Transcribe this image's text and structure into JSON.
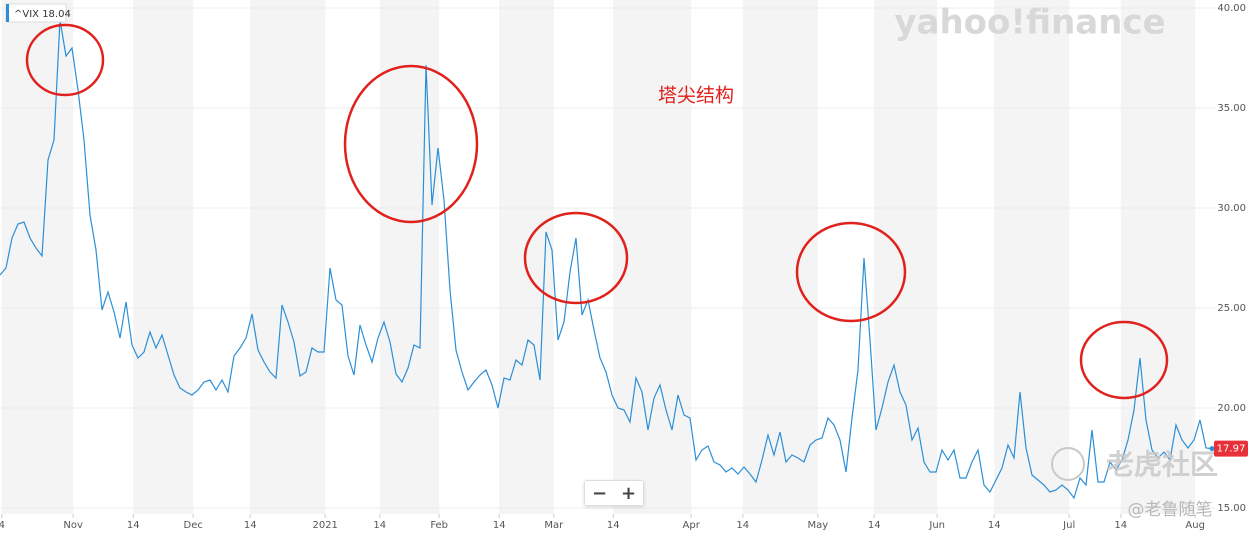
{
  "chart_data": {
    "type": "line",
    "ticker_label": "^VIX 18.04",
    "annotation": "塔尖结构",
    "watermarks": [
      "yahoo!finance",
      "老虎社区",
      "@老鲁随笔"
    ],
    "series": [
      {
        "name": "^VIX",
        "color": "#2b8fd8",
        "values": [
          26.65,
          27.0,
          28.5,
          29.2,
          29.3,
          28.5,
          28.0,
          27.6,
          32.4,
          33.4,
          39.4,
          37.6,
          38.0,
          35.9,
          33.4,
          29.65,
          27.9,
          24.9,
          25.8,
          24.8,
          23.5,
          25.3,
          23.15,
          22.5,
          22.8,
          23.8,
          23.0,
          23.65,
          22.65,
          21.65,
          21.0,
          20.8,
          20.65,
          20.9,
          21.3,
          21.4,
          20.9,
          21.4,
          20.8,
          22.6,
          23.0,
          23.5,
          24.7,
          22.9,
          22.3,
          21.8,
          21.5,
          25.15,
          24.3,
          23.3,
          21.6,
          21.8,
          23.0,
          22.8,
          22.8,
          27.0,
          25.4,
          25.15,
          22.6,
          21.65,
          24.15,
          23.15,
          22.3,
          23.5,
          24.3,
          23.3,
          21.7,
          21.3,
          22.0,
          23.15,
          23.0,
          37.15,
          30.15,
          33.0,
          30.4,
          25.9,
          22.9,
          21.8,
          20.9,
          21.3,
          21.65,
          21.9,
          21.15,
          20.0,
          21.5,
          21.4,
          22.4,
          22.15,
          23.4,
          23.15,
          21.4,
          28.8,
          27.9,
          23.4,
          24.3,
          26.8,
          28.5,
          24.65,
          25.4,
          23.9,
          22.5,
          21.8,
          20.65,
          20.0,
          19.9,
          19.3,
          21.5,
          20.8,
          18.9,
          20.5,
          21.15,
          19.9,
          18.9,
          20.65,
          19.65,
          19.5,
          17.4,
          17.9,
          18.1,
          17.3,
          17.15,
          16.8,
          17.0,
          16.7,
          17.05,
          16.7,
          16.3,
          17.4,
          18.65,
          17.65,
          18.8,
          17.3,
          17.65,
          17.5,
          17.3,
          18.15,
          18.4,
          18.5,
          19.5,
          19.15,
          18.4,
          16.8,
          19.5,
          21.9,
          27.5,
          23.4,
          18.9,
          20.0,
          21.3,
          22.15,
          20.8,
          20.15,
          18.4,
          19.0,
          17.3,
          16.8,
          16.8,
          17.9,
          17.4,
          17.9,
          16.5,
          16.5,
          17.3,
          17.9,
          16.15,
          15.8,
          16.4,
          17.0,
          18.15,
          17.5,
          20.8,
          18.0,
          16.65,
          16.4,
          16.15,
          15.8,
          15.9,
          16.15,
          15.9,
          15.5,
          16.5,
          16.15,
          18.9,
          16.3,
          16.3,
          17.3,
          16.9,
          17.4,
          18.4,
          19.9,
          22.5,
          19.4,
          17.9,
          17.5,
          17.8,
          17.4,
          19.15,
          18.4,
          18.0,
          18.4,
          19.4,
          18.0,
          17.97
        ]
      }
    ],
    "last_value_color": "#e8303a",
    "xlim": [
      0,
      202.5
    ],
    "xticks": [
      {
        "value": 0.3,
        "label": "4"
      },
      {
        "value": 12.2,
        "label": "Nov"
      },
      {
        "value": 22.2,
        "label": "14"
      },
      {
        "value": 32.2,
        "label": "Dec"
      },
      {
        "value": 41.7,
        "label": "14"
      },
      {
        "value": 54.2,
        "label": "2021"
      },
      {
        "value": 63.3,
        "label": "14"
      },
      {
        "value": 73.2,
        "label": "Feb"
      },
      {
        "value": 83.2,
        "label": "14"
      },
      {
        "value": 92.3,
        "label": "Mar"
      },
      {
        "value": 102.2,
        "label": "14"
      },
      {
        "value": 115.2,
        "label": "Apr"
      },
      {
        "value": 123.8,
        "label": "14"
      },
      {
        "value": 136.3,
        "label": "May"
      },
      {
        "value": 145.7,
        "label": "14"
      },
      {
        "value": 156.2,
        "label": "Jun"
      },
      {
        "value": 165.7,
        "label": "14"
      },
      {
        "value": 178.2,
        "label": "Jul"
      },
      {
        "value": 186.8,
        "label": "14"
      },
      {
        "value": 199.2,
        "label": "Aug"
      }
    ],
    "ylim": [
      15,
      40
    ],
    "yticks": [
      {
        "value": 15,
        "label": "15.00"
      },
      {
        "value": 20,
        "label": "20.00"
      },
      {
        "value": 25,
        "label": "25.00"
      },
      {
        "value": 30,
        "label": "30.00"
      },
      {
        "value": 35,
        "label": "35.00"
      },
      {
        "value": 40,
        "label": "40.00"
      }
    ],
    "grid": true
  },
  "controls": [
    "−",
    "+"
  ]
}
